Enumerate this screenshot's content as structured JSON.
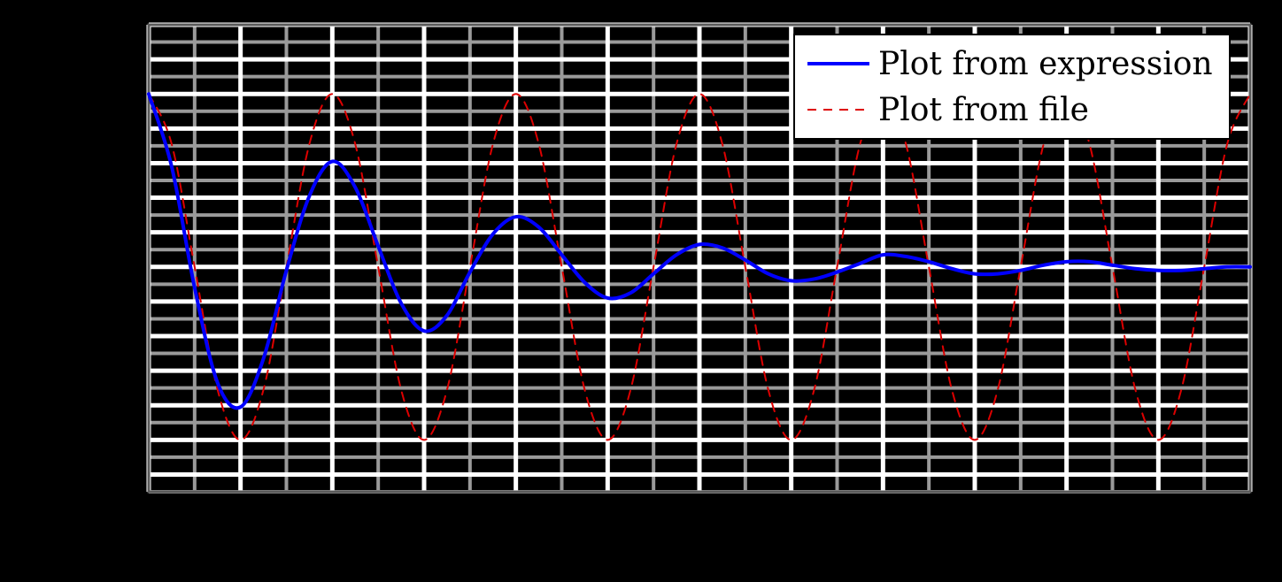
{
  "chart_data": {
    "type": "line",
    "title": "",
    "xlabel": "",
    "ylabel": "",
    "xlim": [
      0,
      12
    ],
    "ylim": [
      -1.3,
      1.4
    ],
    "grid": true,
    "legend_position": "top-right",
    "colors": {
      "background": "#000000",
      "grid_major": "#FFFFFF",
      "grid_minor": "#9A9A9A",
      "expression_line": "#0000FF",
      "file_line": "#DD0000",
      "legend_box": "#FFFFFF"
    },
    "series": [
      {
        "name": "Plot from expression",
        "style": "solid",
        "x": [
          0,
          0.25,
          0.5,
          0.75,
          1.0,
          1.25,
          1.5,
          1.75,
          2.0,
          2.25,
          2.5,
          2.75,
          3.0,
          3.25,
          3.5,
          3.75,
          4.0,
          4.25,
          4.5,
          4.75,
          5.0,
          5.25,
          5.5,
          5.75,
          6.0,
          6.25,
          6.5,
          6.75,
          7.0,
          7.25,
          7.5,
          7.75,
          8.0,
          8.25,
          8.5,
          8.75,
          9.0,
          9.25,
          9.5,
          9.75,
          10.0,
          10.25,
          10.5,
          10.75,
          11.0,
          11.25,
          11.5,
          11.75,
          12.0
        ],
        "y": [
          1.0,
          0.58,
          -0.12,
          -0.67,
          -0.81,
          -0.53,
          -0.02,
          0.41,
          0.61,
          0.46,
          0.12,
          -0.21,
          -0.37,
          -0.28,
          -0.03,
          0.19,
          0.29,
          0.23,
          0.07,
          -0.09,
          -0.18,
          -0.15,
          -0.04,
          0.07,
          0.13,
          0.11,
          0.04,
          -0.04,
          -0.08,
          -0.07,
          -0.03,
          0.02,
          0.07,
          0.06,
          0.03,
          -0.01,
          -0.04,
          -0.04,
          -0.02,
          0.01,
          0.03,
          0.03,
          0.01,
          -0.01,
          -0.02,
          -0.02,
          -0.01,
          0.0,
          0.0
        ]
      },
      {
        "name": "Plot from file",
        "style": "dashed",
        "x": [
          0,
          0.25,
          0.5,
          0.75,
          1.0,
          1.25,
          1.5,
          1.75,
          2.0,
          2.25,
          2.5,
          2.75,
          3.0,
          3.25,
          3.5,
          3.75,
          4.0,
          4.25,
          4.5,
          4.75,
          5.0,
          5.25,
          5.5,
          5.75,
          6.0,
          6.25,
          6.5,
          6.75,
          7.0,
          7.25,
          7.5,
          7.75,
          8.0,
          8.25,
          8.5,
          8.75,
          9.0,
          9.25,
          9.5,
          9.75,
          10.0,
          10.25,
          10.5,
          10.75,
          11.0,
          11.25,
          11.5,
          11.75,
          12.0
        ],
        "y": [
          1.0,
          0.71,
          0.0,
          -0.71,
          -1.0,
          -0.71,
          0.0,
          0.71,
          1.0,
          0.71,
          0.0,
          -0.71,
          -1.0,
          -0.71,
          0.0,
          0.71,
          1.0,
          0.71,
          0.0,
          -0.71,
          -1.0,
          -0.71,
          0.0,
          0.71,
          1.0,
          0.71,
          0.0,
          -0.71,
          -1.0,
          -0.71,
          0.0,
          0.71,
          1.0,
          0.71,
          0.0,
          -0.71,
          -1.0,
          -0.71,
          0.0,
          0.71,
          1.0,
          0.71,
          0.0,
          -0.71,
          -1.0,
          -0.71,
          0.0,
          0.71,
          1.0
        ]
      }
    ]
  }
}
